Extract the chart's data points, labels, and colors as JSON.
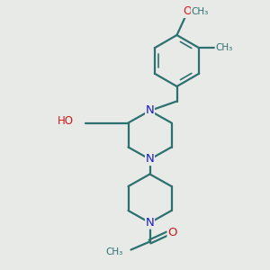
{
  "bg_color": "#e8eae8",
  "bond_color": "#2d7070",
  "N_color": "#1a1acc",
  "O_color": "#cc1a1a",
  "line_width": 1.6,
  "figsize": [
    3.0,
    3.0
  ],
  "dpi": 100,
  "xlim": [
    0,
    10
  ],
  "ylim": [
    0,
    10
  ]
}
